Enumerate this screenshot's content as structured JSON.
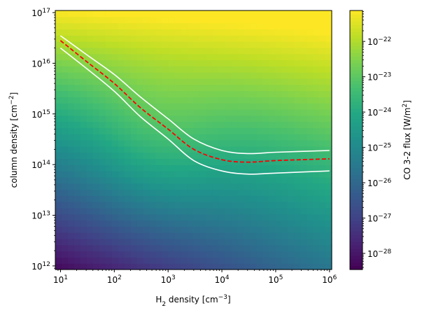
{
  "chart_data": {
    "type": "heatmap",
    "title": "",
    "xlabel": "H",
    "xlabel_sub": "2",
    "xlabel_rest": " density [cm",
    "xlabel_sup": "−3",
    "xlabel_end": "]",
    "ylabel": "column density [cm",
    "ylabel_sup": "−2",
    "ylabel_end": "]",
    "colorbar_label": "CO 3-2 flux [W/m",
    "colorbar_label_sup": "2",
    "colorbar_label_end": "]",
    "x_scale": "log",
    "y_scale": "log",
    "colorbar_scale": "log",
    "colormap": "viridis",
    "xlim": [
      8,
      1100000
    ],
    "ylim": [
      850000000000,
      110000000000000000
    ],
    "clim": [
      3.5e-29,
      7.5e-22
    ],
    "x_ticks": [
      {
        "value": 10,
        "base": "10",
        "exp": "1"
      },
      {
        "value": 100,
        "base": "10",
        "exp": "2"
      },
      {
        "value": 1000,
        "base": "10",
        "exp": "3"
      },
      {
        "value": 10000,
        "base": "10",
        "exp": "4"
      },
      {
        "value": 100000,
        "base": "10",
        "exp": "5"
      },
      {
        "value": 1000000,
        "base": "10",
        "exp": "6"
      }
    ],
    "y_ticks": [
      {
        "value": 1000000000000.0,
        "base": "10",
        "exp": "12"
      },
      {
        "value": 10000000000000.0,
        "base": "10",
        "exp": "13"
      },
      {
        "value": 100000000000000.0,
        "base": "10",
        "exp": "14"
      },
      {
        "value": 1000000000000000.0,
        "base": "10",
        "exp": "15"
      },
      {
        "value": 1e+16,
        "base": "10",
        "exp": "16"
      },
      {
        "value": 1e+17,
        "base": "10",
        "exp": "17"
      }
    ],
    "colorbar_ticks": [
      {
        "value": 1e-28,
        "base": "10",
        "exp": "−28"
      },
      {
        "value": 1e-27,
        "base": "10",
        "exp": "−27"
      },
      {
        "value": 1e-26,
        "base": "10",
        "exp": "−26"
      },
      {
        "value": 1e-25,
        "base": "10",
        "exp": "−25"
      },
      {
        "value": 1e-24,
        "base": "10",
        "exp": "−24"
      },
      {
        "value": 1e-23,
        "base": "10",
        "exp": "−23"
      },
      {
        "value": 1e-22,
        "base": "10",
        "exp": "−22"
      }
    ],
    "series": [
      {
        "style": "dashed",
        "color": "#ff0000",
        "x": [
          10,
          30,
          100,
          300,
          1000,
          3000,
          10000,
          30000,
          100000,
          1000000
        ],
        "y": [
          2.8e+16,
          1.1e+16,
          4000000000000000.0,
          1350000000000000.0,
          500000000000000.0,
          200000000000000.0,
          125000000000000.0,
          112000000000000.0,
          120000000000000.0,
          130000000000000.0
        ]
      },
      {
        "style": "solid",
        "color": "#ffffff",
        "x": [
          10,
          30,
          100,
          300,
          1000,
          3000,
          10000,
          30000,
          100000,
          1000000
        ],
        "y": [
          3.5e+16,
          1.5e+16,
          6000000000000000.0,
          2200000000000000.0,
          800000000000000.0,
          320000000000000.0,
          190000000000000.0,
          165000000000000.0,
          175000000000000.0,
          190000000000000.0
        ]
      },
      {
        "style": "solid",
        "color": "#ffffff",
        "x": [
          10,
          30,
          100,
          300,
          1000,
          3000,
          10000,
          30000,
          100000,
          1000000
        ],
        "y": [
          2e+16,
          8000000000000000.0,
          2800000000000000.0,
          900000000000000.0,
          320000000000000.0,
          120000000000000.0,
          75000000000000.0,
          65000000000000.0,
          68000000000000.0,
          75000000000000.0
        ]
      }
    ]
  }
}
